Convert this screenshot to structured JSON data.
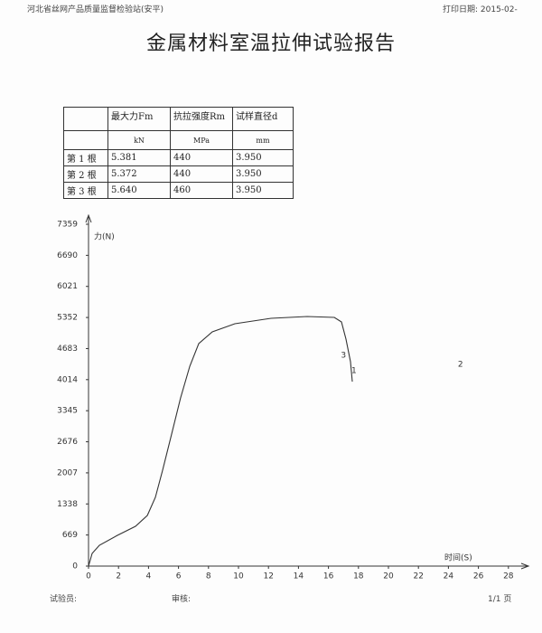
{
  "header": {
    "org": "河北省丝网产品质量监督检验站(安平)",
    "print_date": "打印日期: 2015-02-"
  },
  "title": "金属材料室温拉伸试验报告",
  "table": {
    "columns": [
      "最大力Fm",
      "抗拉强度Rm",
      "试样直径d"
    ],
    "units": [
      "kN",
      "MPa",
      "mm"
    ],
    "rows": [
      [
        "第 1 根",
        "5.381",
        "440",
        "3.950"
      ],
      [
        "第 2 根",
        "5.372",
        "440",
        "3.950"
      ],
      [
        "第 3 根",
        "5.640",
        "460",
        "3.950"
      ]
    ]
  },
  "chart": {
    "type": "line",
    "y_label": "力(N)",
    "x_label": "时间(S)",
    "color": "#333333",
    "x": [
      0,
      0.24,
      0.72,
      1.93,
      3.13,
      3.92,
      4.46,
      4.94,
      5.54,
      6.14,
      6.75,
      7.35,
      8.25,
      9.76,
      12.17,
      14.58,
      16.39,
      16.87,
      17.17,
      17.47,
      17.59
    ],
    "values": [
      0,
      273,
      448,
      662,
      857,
      1090,
      1480,
      2063,
      2842,
      3621,
      4302,
      4789,
      5042,
      5217,
      5334,
      5373,
      5353,
      5256,
      4886,
      4399,
      3971
    ],
    "xlim": [
      0,
      29.3
    ],
    "ylim": [
      0,
      7359
    ],
    "xticks": [
      0,
      2,
      4,
      6,
      8,
      10,
      12,
      14,
      16,
      18,
      20,
      22,
      24,
      26,
      28
    ],
    "yticks": [
      0,
      669,
      1338,
      2007,
      2676,
      3345,
      4014,
      4683,
      5352,
      6021,
      6690,
      7359
    ],
    "annotations": [
      {
        "text": "3",
        "x": 17.0,
        "y": 4536
      },
      {
        "text": "1",
        "x": 17.7,
        "y": 4205
      },
      {
        "text": "2",
        "x": 24.8,
        "y": 4341
      }
    ]
  },
  "footer": {
    "tester": "试验员:",
    "reviewer": "审核:",
    "page": "1/1 页"
  }
}
